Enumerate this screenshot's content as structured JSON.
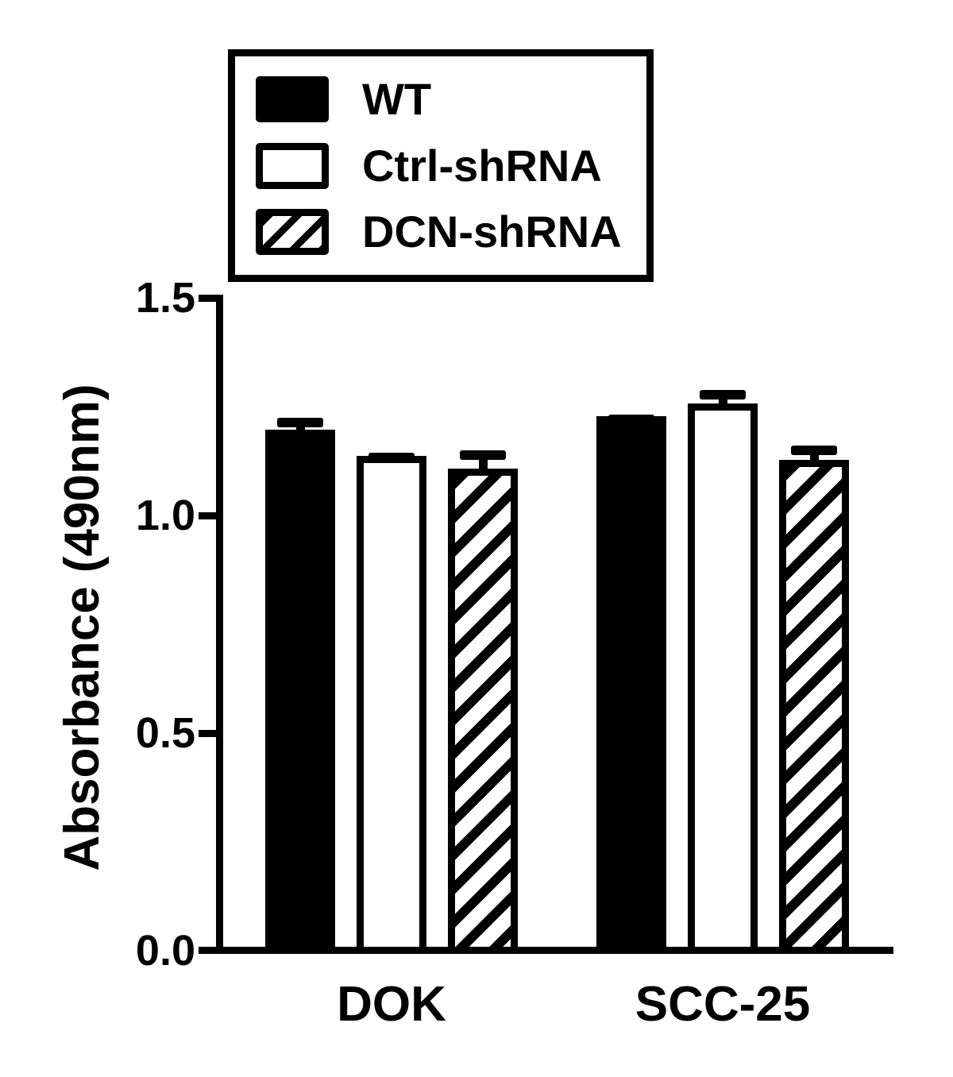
{
  "figure": {
    "background_color": "#ffffff",
    "ink_color": "#000000"
  },
  "chart_data": {
    "type": "bar",
    "title": "",
    "xlabel": "",
    "ylabel": "Absorbance (490nm)",
    "categories": [
      "DOK",
      "SCC-25"
    ],
    "series": [
      {
        "name": "WT",
        "fill": "solid",
        "values": [
          1.19,
          1.22
        ],
        "errors": [
          0.035,
          0.012
        ]
      },
      {
        "name": "Ctrl-shRNA",
        "fill": "white",
        "values": [
          1.13,
          1.25
        ],
        "errors": [
          0.015,
          0.038
        ]
      },
      {
        "name": "DCN-shRNA",
        "fill": "hatch",
        "values": [
          1.1,
          1.12
        ],
        "errors": [
          0.05,
          0.04
        ]
      }
    ],
    "ylim": [
      0.0,
      1.5
    ],
    "yticks": [
      1.5,
      1.0,
      0.5,
      0.0
    ],
    "error_bars": "upper-only",
    "legend_position": "top-center",
    "grid": false
  }
}
